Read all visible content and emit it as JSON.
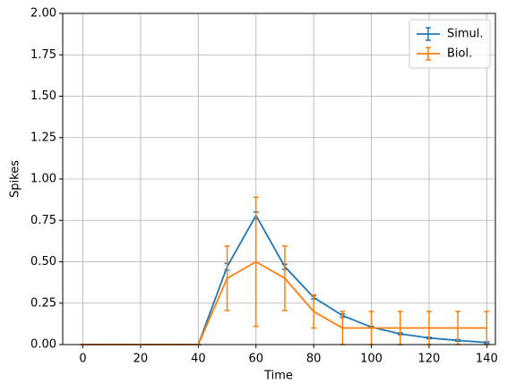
{
  "chart_data": {
    "type": "errorbar-line",
    "xlabel": "Time",
    "ylabel": "Spikes",
    "x": [
      0,
      10,
      20,
      30,
      40,
      50,
      60,
      70,
      80,
      90,
      100,
      110,
      120,
      130,
      140
    ],
    "series": [
      {
        "name": "Simul.",
        "color": "#1f77b4",
        "values": [
          0,
          0,
          0,
          0,
          0,
          0.47,
          0.78,
          0.47,
          0.285,
          0.175,
          0.105,
          0.065,
          0.04,
          0.025,
          0.012
        ],
        "errors": [
          0,
          0,
          0,
          0,
          0,
          0.02,
          0.02,
          0.015,
          0.01,
          0.01,
          0.005,
          0.005,
          0.005,
          0.005,
          0.005
        ]
      },
      {
        "name": "Biol.",
        "color": "#ff7f0e",
        "values": [
          0,
          0,
          0,
          0,
          0,
          0.4,
          0.5,
          0.4,
          0.2,
          0.1,
          0.1,
          0.1,
          0.1,
          0.1,
          0.1
        ],
        "errors": [
          0,
          0,
          0,
          0,
          0,
          0.195,
          0.39,
          0.195,
          0.1,
          0.1,
          0.1,
          0.1,
          0.1,
          0.1,
          0.1
        ]
      }
    ],
    "xlim": [
      -7,
      143
    ],
    "ylim": [
      0,
      2
    ],
    "xticks": [
      0,
      20,
      40,
      60,
      80,
      100,
      120,
      140
    ],
    "yticks": [
      {
        "value": 0,
        "label": "0.00"
      },
      0.25,
      {
        "value": 0.5,
        "label": "0.50"
      },
      0.75,
      {
        "value": 1,
        "label": "1.00"
      },
      1.25,
      {
        "value": 1.5,
        "label": "1.50"
      },
      1.75,
      {
        "value": 2,
        "label": "2.00"
      }
    ],
    "grid": true,
    "legend": "upper-right"
  }
}
